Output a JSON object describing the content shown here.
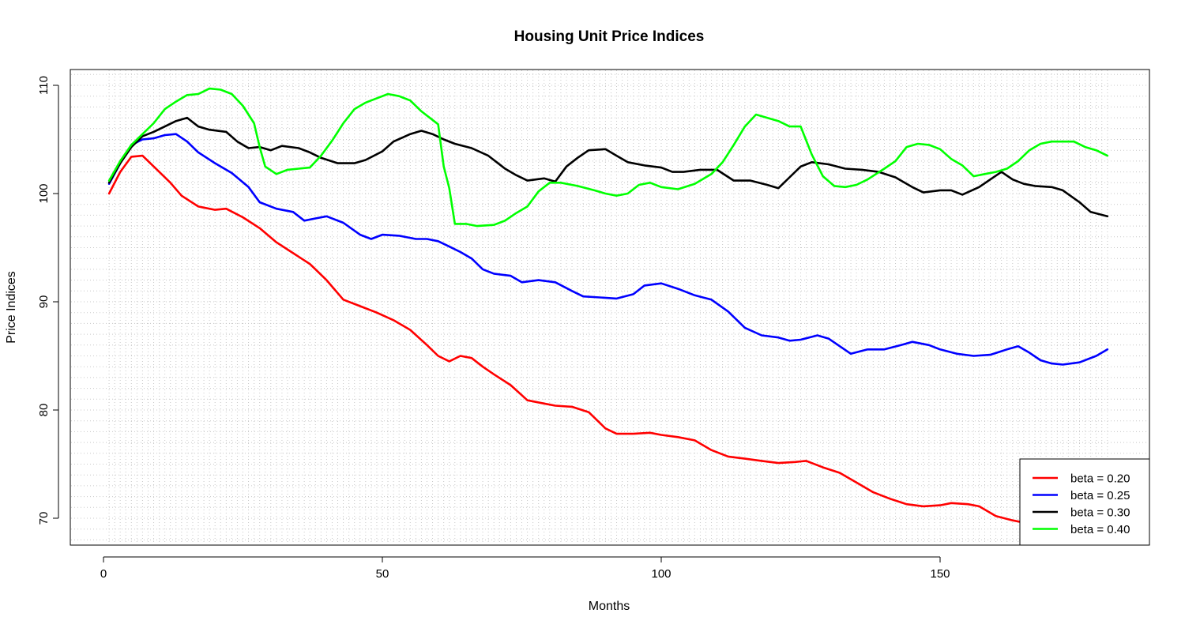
{
  "chart_data": {
    "type": "line",
    "title": "Housing Unit Price Indices",
    "xlabel": "Months",
    "ylabel": "Price Indices",
    "xlim": [
      1,
      180
    ],
    "ylim": [
      67.5,
      111
    ],
    "x_ticks": [
      0,
      50,
      100,
      150
    ],
    "y_ticks": [
      70,
      80,
      90,
      100,
      110
    ],
    "grid": true,
    "legend_position": "bottom-right",
    "series": [
      {
        "name": "beta = 0.20",
        "color": "#ff0000",
        "points": [
          [
            1,
            100.0
          ],
          [
            3,
            102.0
          ],
          [
            5,
            103.4
          ],
          [
            7,
            103.5
          ],
          [
            8,
            103.0
          ],
          [
            10,
            102.0
          ],
          [
            12,
            101.0
          ],
          [
            14,
            99.8
          ],
          [
            17,
            98.8
          ],
          [
            20,
            98.5
          ],
          [
            22,
            98.6
          ],
          [
            25,
            97.8
          ],
          [
            28,
            96.8
          ],
          [
            31,
            95.5
          ],
          [
            34,
            94.5
          ],
          [
            37,
            93.5
          ],
          [
            40,
            92.0
          ],
          [
            43,
            90.2
          ],
          [
            46,
            89.6
          ],
          [
            49,
            89.0
          ],
          [
            52,
            88.3
          ],
          [
            55,
            87.4
          ],
          [
            58,
            86.0
          ],
          [
            60,
            85.0
          ],
          [
            62,
            84.5
          ],
          [
            64,
            85.0
          ],
          [
            66,
            84.8
          ],
          [
            68,
            84.0
          ],
          [
            70,
            83.3
          ],
          [
            73,
            82.3
          ],
          [
            76,
            80.9
          ],
          [
            79,
            80.6
          ],
          [
            81,
            80.4
          ],
          [
            84,
            80.3
          ],
          [
            87,
            79.8
          ],
          [
            90,
            78.3
          ],
          [
            92,
            77.8
          ],
          [
            95,
            77.8
          ],
          [
            98,
            77.9
          ],
          [
            100,
            77.7
          ],
          [
            103,
            77.5
          ],
          [
            106,
            77.2
          ],
          [
            109,
            76.3
          ],
          [
            112,
            75.7
          ],
          [
            115,
            75.5
          ],
          [
            118,
            75.3
          ],
          [
            121,
            75.1
          ],
          [
            124,
            75.2
          ],
          [
            126,
            75.3
          ],
          [
            129,
            74.7
          ],
          [
            132,
            74.2
          ],
          [
            135,
            73.3
          ],
          [
            138,
            72.4
          ],
          [
            141,
            71.8
          ],
          [
            144,
            71.3
          ],
          [
            147,
            71.1
          ],
          [
            150,
            71.2
          ],
          [
            152,
            71.4
          ],
          [
            155,
            71.3
          ],
          [
            157,
            71.1
          ],
          [
            160,
            70.2
          ],
          [
            163,
            69.8
          ],
          [
            165,
            69.6
          ],
          [
            168,
            69.0
          ]
        ]
      },
      {
        "name": "beta = 0.25",
        "color": "#0000ff",
        "points": [
          [
            1,
            100.9
          ],
          [
            3,
            102.8
          ],
          [
            5,
            104.5
          ],
          [
            7,
            105.0
          ],
          [
            9,
            105.1
          ],
          [
            11,
            105.4
          ],
          [
            13,
            105.5
          ],
          [
            15,
            104.8
          ],
          [
            17,
            103.8
          ],
          [
            20,
            102.8
          ],
          [
            23,
            101.9
          ],
          [
            26,
            100.6
          ],
          [
            28,
            99.2
          ],
          [
            31,
            98.6
          ],
          [
            34,
            98.3
          ],
          [
            36,
            97.5
          ],
          [
            38,
            97.7
          ],
          [
            40,
            97.9
          ],
          [
            43,
            97.3
          ],
          [
            46,
            96.2
          ],
          [
            48,
            95.8
          ],
          [
            50,
            96.2
          ],
          [
            53,
            96.1
          ],
          [
            56,
            95.8
          ],
          [
            58,
            95.8
          ],
          [
            60,
            95.6
          ],
          [
            62,
            95.1
          ],
          [
            64,
            94.6
          ],
          [
            66,
            94.0
          ],
          [
            68,
            93.0
          ],
          [
            70,
            92.6
          ],
          [
            73,
            92.4
          ],
          [
            75,
            91.8
          ],
          [
            78,
            92.0
          ],
          [
            81,
            91.8
          ],
          [
            84,
            91.0
          ],
          [
            86,
            90.5
          ],
          [
            89,
            90.4
          ],
          [
            92,
            90.3
          ],
          [
            95,
            90.7
          ],
          [
            97,
            91.5
          ],
          [
            100,
            91.7
          ],
          [
            103,
            91.2
          ],
          [
            106,
            90.6
          ],
          [
            109,
            90.2
          ],
          [
            112,
            89.1
          ],
          [
            115,
            87.6
          ],
          [
            118,
            86.9
          ],
          [
            121,
            86.7
          ],
          [
            123,
            86.4
          ],
          [
            125,
            86.5
          ],
          [
            128,
            86.9
          ],
          [
            130,
            86.6
          ],
          [
            132,
            85.9
          ],
          [
            134,
            85.2
          ],
          [
            137,
            85.6
          ],
          [
            140,
            85.6
          ],
          [
            143,
            86.0
          ],
          [
            145,
            86.3
          ],
          [
            148,
            86.0
          ],
          [
            150,
            85.6
          ],
          [
            153,
            85.2
          ],
          [
            156,
            85.0
          ],
          [
            159,
            85.1
          ],
          [
            162,
            85.6
          ],
          [
            164,
            85.9
          ],
          [
            166,
            85.3
          ],
          [
            168,
            84.6
          ],
          [
            170,
            84.3
          ],
          [
            172,
            84.2
          ],
          [
            175,
            84.4
          ],
          [
            178,
            85.0
          ],
          [
            180,
            85.6
          ]
        ]
      },
      {
        "name": "beta = 0.30",
        "color": "#000000",
        "points": [
          [
            1,
            101.0
          ],
          [
            3,
            102.8
          ],
          [
            5,
            104.3
          ],
          [
            7,
            105.3
          ],
          [
            9,
            105.7
          ],
          [
            11,
            106.2
          ],
          [
            13,
            106.7
          ],
          [
            15,
            107.0
          ],
          [
            17,
            106.2
          ],
          [
            19,
            105.9
          ],
          [
            22,
            105.7
          ],
          [
            24,
            104.8
          ],
          [
            26,
            104.2
          ],
          [
            28,
            104.3
          ],
          [
            30,
            104.0
          ],
          [
            32,
            104.4
          ],
          [
            35,
            104.2
          ],
          [
            37,
            103.8
          ],
          [
            39,
            103.3
          ],
          [
            42,
            102.8
          ],
          [
            45,
            102.8
          ],
          [
            47,
            103.1
          ],
          [
            50,
            103.9
          ],
          [
            52,
            104.8
          ],
          [
            55,
            105.5
          ],
          [
            57,
            105.8
          ],
          [
            59,
            105.5
          ],
          [
            61,
            105.0
          ],
          [
            63,
            104.6
          ],
          [
            66,
            104.2
          ],
          [
            69,
            103.5
          ],
          [
            72,
            102.3
          ],
          [
            74,
            101.7
          ],
          [
            76,
            101.2
          ],
          [
            79,
            101.4
          ],
          [
            81,
            101.1
          ],
          [
            83,
            102.5
          ],
          [
            85,
            103.3
          ],
          [
            87,
            104.0
          ],
          [
            90,
            104.1
          ],
          [
            92,
            103.5
          ],
          [
            94,
            102.9
          ],
          [
            97,
            102.6
          ],
          [
            100,
            102.4
          ],
          [
            102,
            102.0
          ],
          [
            104,
            102.0
          ],
          [
            107,
            102.2
          ],
          [
            110,
            102.2
          ],
          [
            113,
            101.2
          ],
          [
            116,
            101.2
          ],
          [
            119,
            100.8
          ],
          [
            121,
            100.5
          ],
          [
            123,
            101.5
          ],
          [
            125,
            102.5
          ],
          [
            127,
            102.9
          ],
          [
            130,
            102.7
          ],
          [
            133,
            102.3
          ],
          [
            136,
            102.2
          ],
          [
            139,
            102.0
          ],
          [
            142,
            101.5
          ],
          [
            145,
            100.6
          ],
          [
            147,
            100.1
          ],
          [
            150,
            100.3
          ],
          [
            152,
            100.3
          ],
          [
            154,
            99.9
          ],
          [
            157,
            100.6
          ],
          [
            159,
            101.3
          ],
          [
            161,
            102.0
          ],
          [
            163,
            101.3
          ],
          [
            165,
            100.9
          ],
          [
            167,
            100.7
          ],
          [
            170,
            100.6
          ],
          [
            172,
            100.3
          ],
          [
            175,
            99.2
          ],
          [
            177,
            98.3
          ],
          [
            180,
            97.9
          ]
        ]
      },
      {
        "name": "beta = 0.40",
        "color": "#00ff00",
        "points": [
          [
            1,
            101.2
          ],
          [
            3,
            103.0
          ],
          [
            5,
            104.5
          ],
          [
            7,
            105.5
          ],
          [
            9,
            106.5
          ],
          [
            11,
            107.8
          ],
          [
            13,
            108.5
          ],
          [
            15,
            109.1
          ],
          [
            17,
            109.2
          ],
          [
            19,
            109.7
          ],
          [
            21,
            109.6
          ],
          [
            23,
            109.2
          ],
          [
            25,
            108.1
          ],
          [
            27,
            106.5
          ],
          [
            28,
            104.3
          ],
          [
            29,
            102.5
          ],
          [
            31,
            101.8
          ],
          [
            33,
            102.2
          ],
          [
            35,
            102.3
          ],
          [
            37,
            102.4
          ],
          [
            39,
            103.5
          ],
          [
            41,
            104.9
          ],
          [
            43,
            106.5
          ],
          [
            45,
            107.8
          ],
          [
            47,
            108.4
          ],
          [
            49,
            108.8
          ],
          [
            51,
            109.2
          ],
          [
            53,
            109.0
          ],
          [
            55,
            108.6
          ],
          [
            57,
            107.6
          ],
          [
            59,
            106.8
          ],
          [
            60,
            106.4
          ],
          [
            61,
            102.5
          ],
          [
            62,
            100.5
          ],
          [
            63,
            97.2
          ],
          [
            65,
            97.2
          ],
          [
            67,
            97.0
          ],
          [
            70,
            97.1
          ],
          [
            72,
            97.5
          ],
          [
            74,
            98.2
          ],
          [
            76,
            98.8
          ],
          [
            78,
            100.2
          ],
          [
            80,
            101.0
          ],
          [
            82,
            101.0
          ],
          [
            85,
            100.7
          ],
          [
            88,
            100.3
          ],
          [
            90,
            100.0
          ],
          [
            92,
            99.8
          ],
          [
            94,
            100.0
          ],
          [
            96,
            100.8
          ],
          [
            98,
            101.0
          ],
          [
            100,
            100.6
          ],
          [
            103,
            100.4
          ],
          [
            106,
            100.9
          ],
          [
            109,
            101.8
          ],
          [
            111,
            102.9
          ],
          [
            113,
            104.5
          ],
          [
            115,
            106.2
          ],
          [
            117,
            107.3
          ],
          [
            119,
            107.0
          ],
          [
            121,
            106.7
          ],
          [
            123,
            106.2
          ],
          [
            125,
            106.2
          ],
          [
            127,
            103.6
          ],
          [
            129,
            101.6
          ],
          [
            131,
            100.7
          ],
          [
            133,
            100.6
          ],
          [
            135,
            100.8
          ],
          [
            137,
            101.3
          ],
          [
            140,
            102.3
          ],
          [
            142,
            103.0
          ],
          [
            144,
            104.3
          ],
          [
            146,
            104.6
          ],
          [
            148,
            104.5
          ],
          [
            150,
            104.1
          ],
          [
            152,
            103.2
          ],
          [
            154,
            102.6
          ],
          [
            156,
            101.6
          ],
          [
            158,
            101.8
          ],
          [
            160,
            102.0
          ],
          [
            162,
            102.3
          ],
          [
            164,
            103.0
          ],
          [
            166,
            104.0
          ],
          [
            168,
            104.6
          ],
          [
            170,
            104.8
          ],
          [
            172,
            104.8
          ],
          [
            174,
            104.8
          ],
          [
            176,
            104.3
          ],
          [
            178,
            104.0
          ],
          [
            180,
            103.5
          ]
        ]
      }
    ]
  }
}
